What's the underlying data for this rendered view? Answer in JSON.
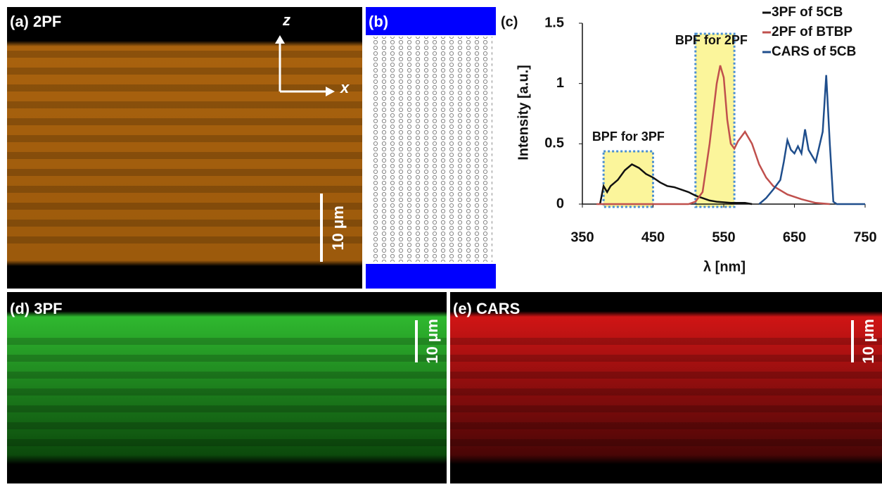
{
  "panels": {
    "a": {
      "label": "(a) 2PF",
      "axis_z": "z",
      "axis_x": "x",
      "scale_bar": "10 μm"
    },
    "b": {
      "label": "(b)"
    },
    "c": {
      "label": "(c)"
    },
    "d": {
      "label": "(d) 3PF",
      "scale_bar": "10 μm"
    },
    "e": {
      "label": "(e) CARS",
      "scale_bar": "10 μm"
    }
  },
  "chart_data": {
    "type": "line",
    "xlabel": "λ [nm]",
    "ylabel": "Intensity [a.u.]",
    "xlim": [
      350,
      750
    ],
    "xticks": [
      350,
      450,
      550,
      650,
      750
    ],
    "ylim": [
      0,
      1.5
    ],
    "yticks": [
      0,
      0.5,
      1,
      1.5
    ],
    "legend": "upper right",
    "bands": [
      {
        "label": "BPF for 3PF",
        "range": [
          380,
          450
        ]
      },
      {
        "label": "BPF for 2PF",
        "range": [
          510,
          565
        ]
      }
    ],
    "series": [
      {
        "name": "3PF of 5CB",
        "color": "#111111",
        "x": [
          375,
          380,
          385,
          390,
          400,
          410,
          420,
          430,
          440,
          450,
          460,
          470,
          480,
          490,
          500,
          510,
          520,
          530,
          540,
          560,
          580,
          590
        ],
        "values": [
          0,
          0.15,
          0.1,
          0.15,
          0.2,
          0.28,
          0.33,
          0.3,
          0.25,
          0.22,
          0.18,
          0.15,
          0.14,
          0.12,
          0.1,
          0.07,
          0.05,
          0.03,
          0.02,
          0.01,
          0.01,
          0
        ]
      },
      {
        "name": "2PF of BTBP",
        "color": "#c0504d",
        "x": [
          370,
          500,
          510,
          520,
          530,
          540,
          545,
          550,
          555,
          560,
          565,
          570,
          580,
          590,
          600,
          610,
          620,
          640,
          660,
          680,
          700
        ],
        "values": [
          0,
          0,
          0.02,
          0.1,
          0.5,
          1.0,
          1.15,
          1.05,
          0.7,
          0.5,
          0.46,
          0.52,
          0.6,
          0.5,
          0.33,
          0.22,
          0.15,
          0.08,
          0.04,
          0.01,
          0
        ]
      },
      {
        "name": "CARS of 5CB",
        "color": "#1f4e8c",
        "x": [
          600,
          610,
          620,
          630,
          635,
          640,
          645,
          650,
          655,
          660,
          665,
          670,
          680,
          690,
          695,
          700,
          705,
          710,
          750
        ],
        "values": [
          0,
          0.05,
          0.12,
          0.2,
          0.35,
          0.53,
          0.45,
          0.42,
          0.48,
          0.42,
          0.62,
          0.45,
          0.35,
          0.6,
          1.07,
          0.5,
          0.02,
          0,
          0
        ]
      }
    ]
  }
}
